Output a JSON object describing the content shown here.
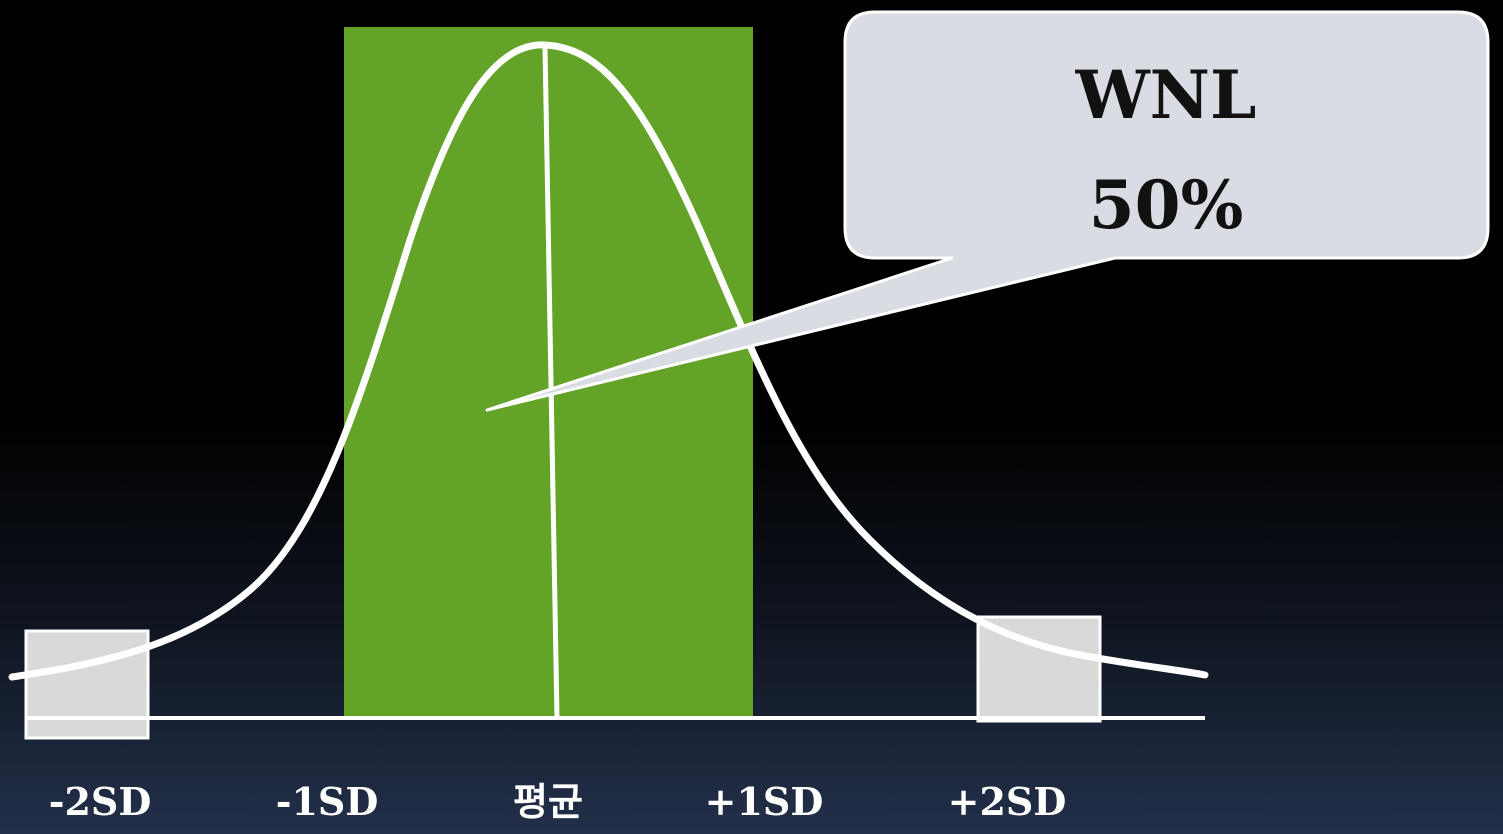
{
  "callout": {
    "line1": "WNL",
    "line2": "50%"
  },
  "axis_labels": [
    "-2SD",
    "-1SD",
    "평균",
    "+1SD",
    "+2SD"
  ],
  "colors": {
    "band": "#62a328",
    "curve": "#ffffff",
    "tail_box": "#d9d9d9",
    "callout_fill": "#d9dde3",
    "text": "#111111"
  }
}
